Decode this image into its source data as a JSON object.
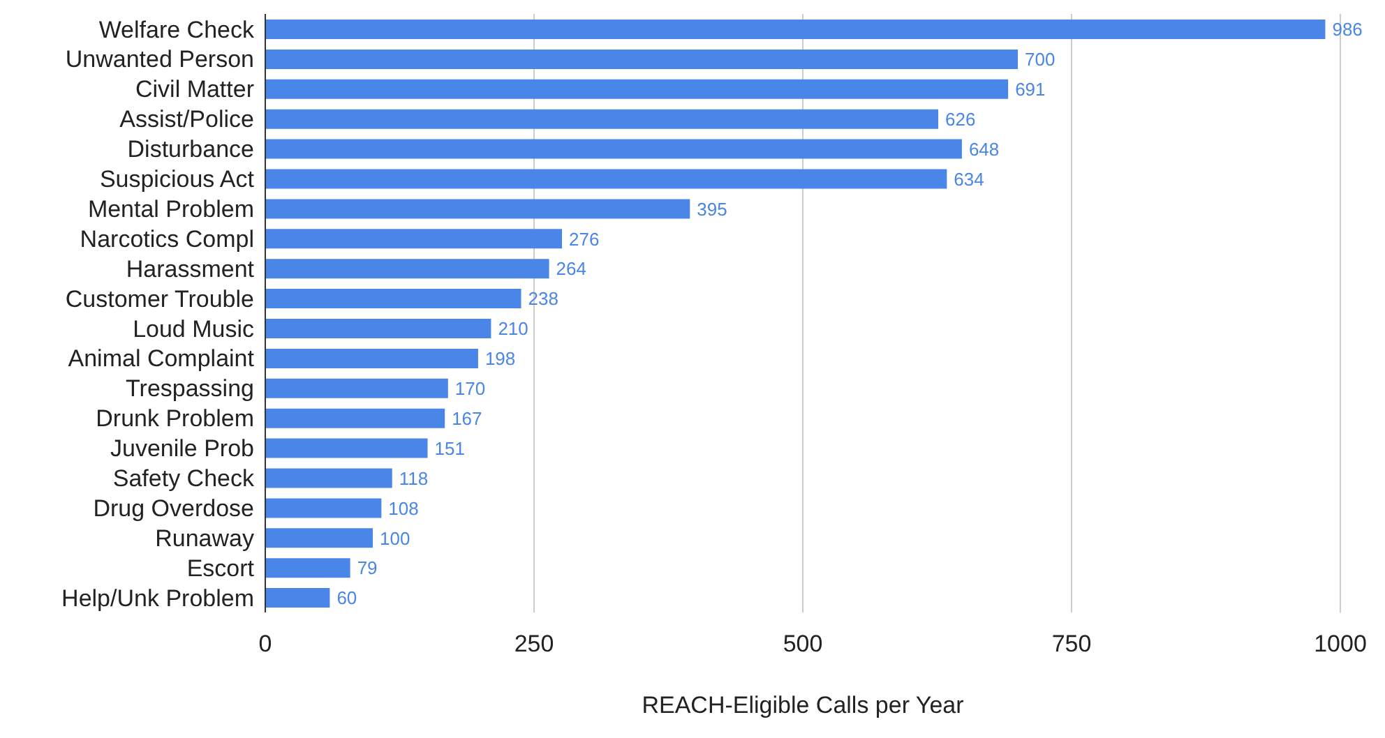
{
  "chart_data": {
    "type": "bar",
    "orientation": "horizontal",
    "xlabel": "REACH-Eligible Calls per Year",
    "categories": [
      "Welfare Check",
      "Unwanted Person",
      "Civil Matter",
      "Assist/Police",
      "Disturbance",
      "Suspicious Act",
      "Mental Problem",
      "Narcotics Compl",
      "Harassment",
      "Customer Trouble",
      "Loud Music",
      "Animal Complaint",
      "Trespassing",
      "Drunk Problem",
      "Juvenile Prob",
      "Safety Check",
      "Drug Overdose",
      "Runaway",
      "Escort",
      "Help/Unk Problem"
    ],
    "values": [
      986,
      700,
      691,
      626,
      648,
      634,
      395,
      276,
      264,
      238,
      210,
      198,
      170,
      167,
      151,
      118,
      108,
      100,
      79,
      60
    ],
    "color": "#4a86e8",
    "xlim": [
      0,
      1000
    ],
    "xticks": [
      0,
      250,
      500,
      750,
      1000
    ],
    "grid": "x",
    "data_labels": true
  }
}
